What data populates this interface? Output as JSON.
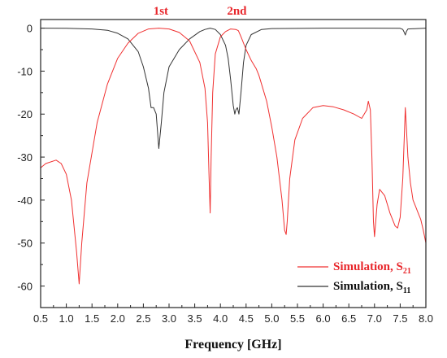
{
  "chart_data": {
    "type": "line",
    "title": "",
    "xlabel": "Frequency [GHz]",
    "ylabel": "",
    "xlim": [
      0.5,
      8.0
    ],
    "ylim": [
      -65,
      2
    ],
    "x_ticks": [
      0.5,
      1.0,
      1.5,
      2.0,
      2.5,
      3.0,
      3.5,
      4.0,
      4.5,
      5.0,
      5.5,
      6.0,
      6.5,
      7.0,
      7.5,
      8.0
    ],
    "x_tick_labels": [
      "0.5",
      "1.0",
      "1.5",
      "2.0",
      "2.5",
      "3.0",
      "3.5",
      "4.0",
      "4.5",
      "5.0",
      "5.5",
      "6.0",
      "6.5",
      "7.0",
      "7.5",
      "8.0"
    ],
    "y_ticks": [
      0,
      -10,
      -20,
      -30,
      -40,
      -50,
      -60
    ],
    "y_tick_labels": [
      "0",
      "-10",
      "-20",
      "-30",
      "-40",
      "-50",
      "-60"
    ],
    "grid": false,
    "legend_position": "bottom-right",
    "annotations": [
      {
        "text": "1st",
        "x": 2.84,
        "color": "#e8262b"
      },
      {
        "text": "2nd",
        "x": 4.32,
        "color": "#e8262b"
      }
    ],
    "series": [
      {
        "name": "Simulation, S21",
        "legend_main": "Simulation, S",
        "legend_sub": "21",
        "color": "#f03030",
        "x": [
          0.5,
          0.6,
          0.8,
          0.9,
          1.0,
          1.1,
          1.2,
          1.25,
          1.3,
          1.4,
          1.6,
          1.8,
          2.0,
          2.2,
          2.4,
          2.6,
          2.8,
          3.0,
          3.2,
          3.4,
          3.6,
          3.7,
          3.75,
          3.78,
          3.8,
          3.82,
          3.85,
          3.9,
          4.0,
          4.1,
          4.2,
          4.3,
          4.35,
          4.4,
          4.5,
          4.6,
          4.7,
          4.75,
          4.8,
          4.9,
          5.0,
          5.1,
          5.2,
          5.25,
          5.28,
          5.3,
          5.35,
          5.45,
          5.6,
          5.8,
          6.0,
          6.2,
          6.4,
          6.6,
          6.75,
          6.85,
          6.88,
          6.92,
          6.95,
          6.98,
          7.0,
          7.05,
          7.1,
          7.2,
          7.3,
          7.4,
          7.45,
          7.5,
          7.55,
          7.58,
          7.6,
          7.62,
          7.65,
          7.7,
          7.75,
          7.8,
          7.85,
          7.9,
          7.95,
          8.0
        ],
        "y": [
          -32.5,
          -31.5,
          -30.7,
          -31.5,
          -34,
          -40,
          -52,
          -59.5,
          -50,
          -36,
          -22,
          -13,
          -7,
          -3.5,
          -1.2,
          -0.2,
          0,
          -0.2,
          -1.0,
          -3,
          -8,
          -14,
          -22,
          -35,
          -43,
          -30,
          -15,
          -6,
          -2,
          -0.8,
          -0.2,
          -0.3,
          -0.6,
          -2,
          -5,
          -7.5,
          -9.5,
          -11,
          -13,
          -17,
          -23,
          -30,
          -40,
          -47,
          -48,
          -45,
          -35,
          -26,
          -21,
          -18.5,
          -18,
          -18.3,
          -19,
          -20,
          -21,
          -19,
          -17,
          -19,
          -30,
          -45,
          -48.5,
          -41,
          -37.5,
          -39,
          -43,
          -46,
          -46.5,
          -44,
          -35,
          -25,
          -18.5,
          -23,
          -30,
          -36,
          -40,
          -41.5,
          -43,
          -44.5,
          -47,
          -50
        ]
      },
      {
        "name": "Simulation, S11",
        "legend_main": "Simulation, S",
        "legend_sub": "11",
        "color": "#333333",
        "x": [
          0.5,
          1.0,
          1.5,
          1.8,
          2.0,
          2.2,
          2.4,
          2.5,
          2.6,
          2.65,
          2.7,
          2.75,
          2.8,
          2.85,
          2.9,
          3.0,
          3.2,
          3.4,
          3.6,
          3.7,
          3.8,
          3.9,
          4.0,
          4.1,
          4.15,
          4.2,
          4.25,
          4.28,
          4.3,
          4.33,
          4.36,
          4.4,
          4.45,
          4.5,
          4.6,
          4.8,
          5.0,
          6.0,
          7.0,
          7.5,
          7.55,
          7.58,
          7.6,
          7.62,
          7.65,
          8.0
        ],
        "y": [
          0,
          -0.05,
          -0.2,
          -0.5,
          -1.2,
          -2.5,
          -5.5,
          -9,
          -14,
          -18.5,
          -18.5,
          -20,
          -28,
          -22,
          -15,
          -9,
          -5,
          -2.5,
          -0.8,
          -0.3,
          0,
          -0.3,
          -1.5,
          -4,
          -7,
          -12,
          -18,
          -20,
          -19,
          -18.5,
          -20,
          -15,
          -8,
          -4,
          -1.5,
          -0.3,
          -0.1,
          0,
          0,
          -0.05,
          -0.3,
          -1,
          -1.6,
          -0.8,
          -0.2,
          0
        ]
      }
    ]
  }
}
